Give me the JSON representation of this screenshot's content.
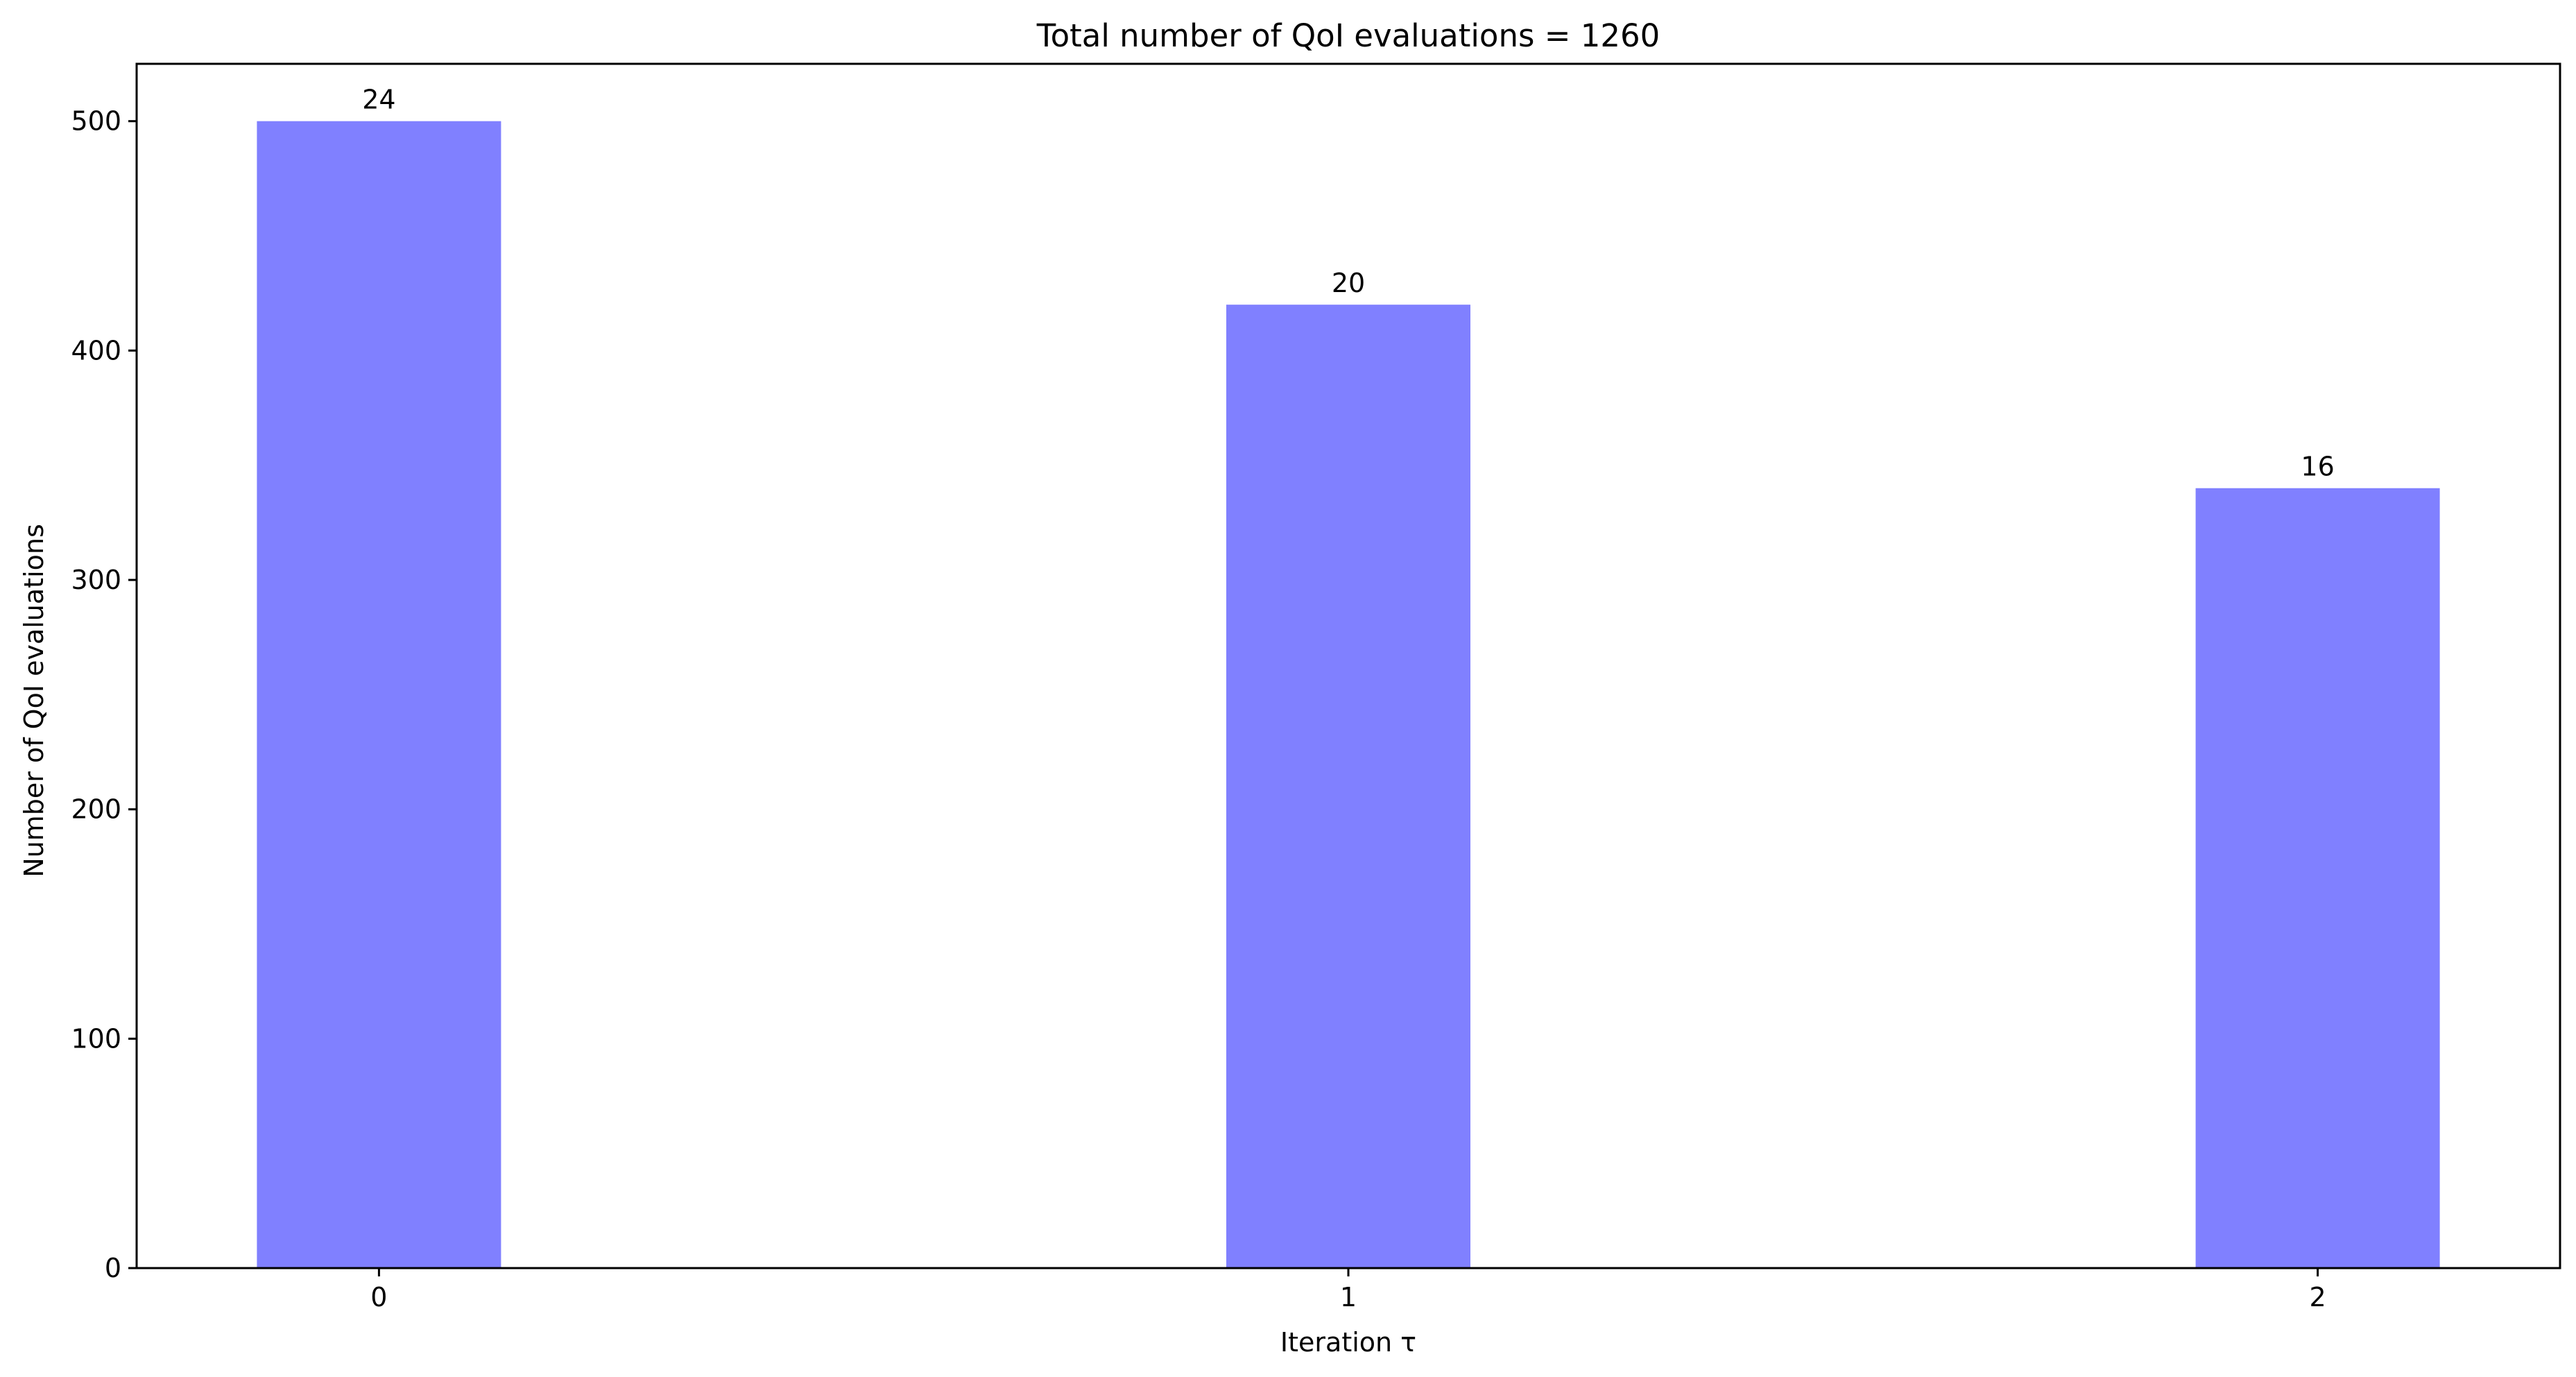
{
  "chart_data": {
    "type": "bar",
    "title": "Total number of QoI evaluations = 1260",
    "xlabel": "Iteration τ",
    "ylabel": "Number of QoI evaluations",
    "categories": [
      "0",
      "1",
      "2"
    ],
    "values": [
      500,
      420,
      340
    ],
    "bar_labels": [
      "24",
      "20",
      "16"
    ],
    "bar_color": "#8080ff",
    "ylim": [
      0,
      525
    ],
    "yticks": [
      0,
      100,
      200,
      300,
      400,
      500
    ],
    "ytick_labels": [
      "0",
      "100",
      "200",
      "300",
      "400",
      "500"
    ],
    "xlim": [
      -0.25,
      2.25
    ],
    "grid": false,
    "legend": "none"
  }
}
